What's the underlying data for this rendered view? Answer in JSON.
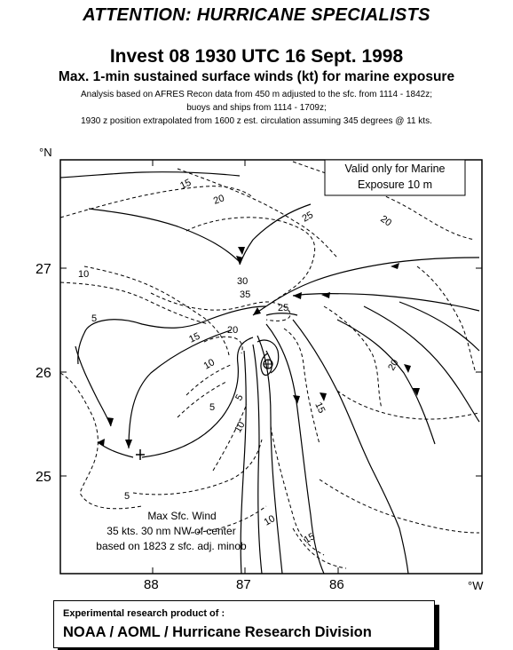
{
  "header": {
    "attention": "ATTENTION: HURRICANE SPECIALISTS",
    "title": "Invest 08 1930 UTC 16 Sept. 1998",
    "subtitle": "Max. 1-min sustained surface winds (kt) for marine exposure",
    "note1": "Analysis based on  AFRES Recon data from 450 m adjusted to the sfc. from 1114 - 1842z;",
    "note2": "buoys and ships from 1114 - 1709z;",
    "note3": "1930 z position extrapolated from 1600 z est. circulation assuming  345 degrees @ 11 kts."
  },
  "map": {
    "lat_unit": "°N",
    "lon_unit": "°W",
    "lat_ticks": [
      "27",
      "26",
      "25"
    ],
    "lon_ticks": [
      "88",
      "87",
      "86"
    ],
    "validity_line1": "Valid only for Marine",
    "validity_line2": "Exposure 10 m",
    "max_wind_line1": "Max Sfc. Wind",
    "max_wind_line2": "35 kts. 30 nm NW of center",
    "max_wind_line3": "based on 1823 z sfc. adj. minob",
    "contour_labels": {
      "c15a": "15",
      "c20a": "20",
      "c20b": "20",
      "c25a": "25",
      "c10a": "10",
      "c30": "30",
      "c35": "35",
      "c25b": "25",
      "c5a": "5",
      "c15b": "15",
      "c20c": "20",
      "c10b": "10",
      "c20d": "20",
      "c5b": "5",
      "c5c": "5",
      "c15c": "15",
      "c10c": "10",
      "c10d": "10",
      "c15d": "15",
      "c5d": "5"
    }
  },
  "footer": {
    "line1": "Experimental research product of :",
    "line2": "NOAA / AOML / Hurricane Research Division"
  }
}
